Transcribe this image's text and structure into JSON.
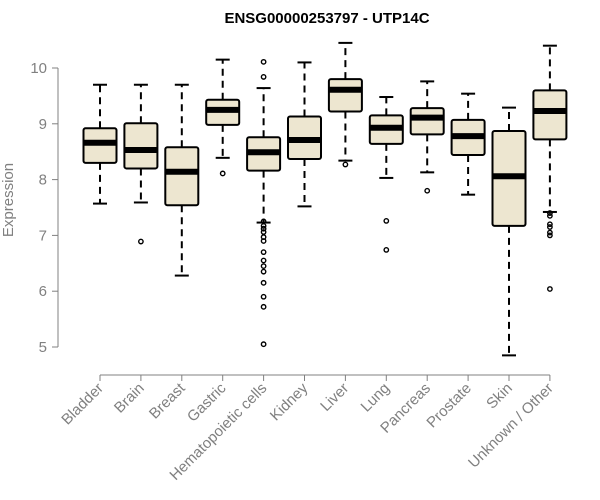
{
  "colors": {
    "box_fill": "#ede6d0",
    "stroke": "#000000",
    "axis": "#808080",
    "text": "#808080"
  },
  "chart_data": {
    "type": "boxplot",
    "title": "ENSG00000253797 - UTP14C",
    "xlabel": "",
    "ylabel": "Expression",
    "ylim": [
      4.8,
      10.5
    ],
    "yticks": [
      5,
      6,
      7,
      8,
      9,
      10
    ],
    "categories": [
      "Bladder",
      "Brain",
      "Breast",
      "Gastric",
      "Hematopoietic cells",
      "Kidney",
      "Liver",
      "Lung",
      "Pancreas",
      "Prostate",
      "Skin",
      "Unknown / Other"
    ],
    "boxes": [
      {
        "name": "Bladder",
        "whisker_low": 7.57,
        "q1": 8.3,
        "median": 8.66,
        "q3": 8.92,
        "whisker_high": 9.7,
        "outliers": []
      },
      {
        "name": "Brain",
        "whisker_low": 7.59,
        "q1": 8.2,
        "median": 8.53,
        "q3": 9.01,
        "whisker_high": 9.7,
        "outliers": [
          6.89
        ]
      },
      {
        "name": "Breast",
        "whisker_low": 6.28,
        "q1": 7.54,
        "median": 8.14,
        "q3": 8.58,
        "whisker_high": 9.7,
        "outliers": []
      },
      {
        "name": "Gastric",
        "whisker_low": 8.39,
        "q1": 8.98,
        "median": 9.25,
        "q3": 9.43,
        "whisker_high": 10.15,
        "outliers": [
          8.11
        ]
      },
      {
        "name": "Hematopoietic cells",
        "whisker_low": 7.23,
        "q1": 8.16,
        "median": 8.49,
        "q3": 8.76,
        "whisker_high": 9.64,
        "outliers": [
          10.11,
          9.84,
          7.25,
          7.17,
          7.12,
          7.06,
          6.97,
          6.9,
          6.7,
          6.55,
          6.45,
          6.35,
          6.15,
          5.9,
          5.72,
          5.05
        ]
      },
      {
        "name": "Kidney",
        "whisker_low": 7.52,
        "q1": 8.37,
        "median": 8.71,
        "q3": 9.13,
        "whisker_high": 10.1,
        "outliers": []
      },
      {
        "name": "Liver",
        "whisker_low": 8.34,
        "q1": 9.22,
        "median": 9.61,
        "q3": 9.8,
        "whisker_high": 10.45,
        "outliers": [
          8.27
        ]
      },
      {
        "name": "Lung",
        "whisker_low": 8.03,
        "q1": 8.64,
        "median": 8.93,
        "q3": 9.15,
        "whisker_high": 9.48,
        "outliers": [
          7.26,
          6.74
        ]
      },
      {
        "name": "Pancreas",
        "whisker_low": 8.13,
        "q1": 8.81,
        "median": 9.11,
        "q3": 9.28,
        "whisker_high": 9.76,
        "outliers": [
          7.8
        ]
      },
      {
        "name": "Prostate",
        "whisker_low": 7.73,
        "q1": 8.44,
        "median": 8.78,
        "q3": 9.07,
        "whisker_high": 9.54,
        "outliers": []
      },
      {
        "name": "Skin",
        "whisker_low": 4.85,
        "q1": 7.17,
        "median": 8.06,
        "q3": 8.87,
        "whisker_high": 9.29,
        "outliers": []
      },
      {
        "name": "Unknown / Other",
        "whisker_low": 7.42,
        "q1": 8.72,
        "median": 9.23,
        "q3": 9.6,
        "whisker_high": 10.4,
        "outliers": [
          7.4,
          7.35,
          7.2,
          7.15,
          7.05,
          7.0,
          6.04
        ]
      }
    ]
  }
}
